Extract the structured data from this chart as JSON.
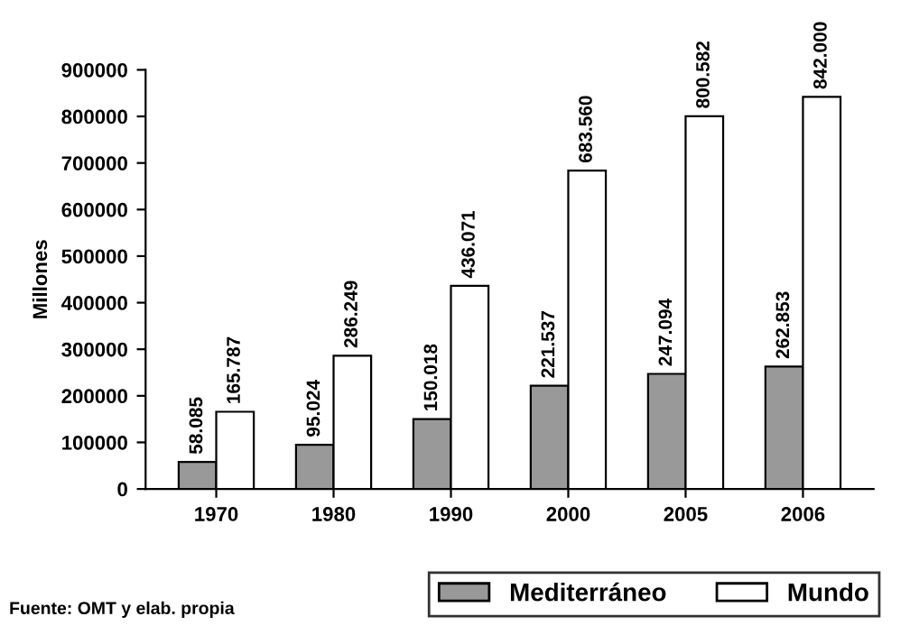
{
  "chart_data": {
    "type": "bar",
    "ylabel": "Millones",
    "categories": [
      "1970",
      "1980",
      "1990",
      "2000",
      "2005",
      "2006"
    ],
    "series": [
      {
        "name": "Mediterráneo",
        "color": "#999999",
        "values": [
          58085,
          95024,
          150018,
          221537,
          247094,
          262853
        ],
        "value_labels": [
          "58.085",
          "95.024",
          "150.018",
          "221.537",
          "247.094",
          "262.853"
        ]
      },
      {
        "name": "Mundo",
        "color": "#ffffff",
        "values": [
          165787,
          286249,
          436071,
          683560,
          800582,
          842000
        ],
        "value_labels": [
          "165.787",
          "286.249",
          "436.071",
          "683.560",
          "800.582",
          "842.000"
        ]
      }
    ],
    "ylim": [
      0,
      900000
    ],
    "yticks": [
      0,
      100000,
      200000,
      300000,
      400000,
      500000,
      600000,
      700000,
      800000,
      900000
    ],
    "grid": false,
    "legend": "bottom right",
    "annotations": [
      "Fuente: OMT y elab. propia"
    ]
  }
}
